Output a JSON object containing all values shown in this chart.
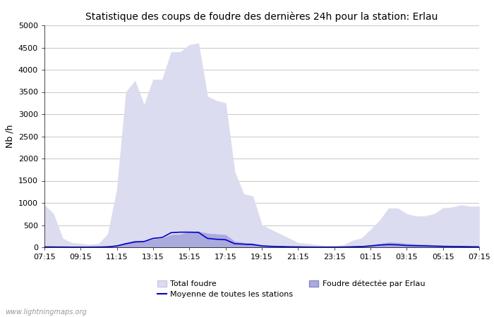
{
  "title": "Statistique des coups de foudre des dernières 24h pour la station: Erlau",
  "ylabel": "Nb /h",
  "xlim_labels": [
    "07:15",
    "09:15",
    "11:15",
    "13:15",
    "15:15",
    "17:15",
    "19:15",
    "21:15",
    "23:15",
    "01:15",
    "03:15",
    "05:15",
    "07:15"
  ],
  "ylim": [
    0,
    5000
  ],
  "yticks": [
    0,
    500,
    1000,
    1500,
    2000,
    2500,
    3000,
    3500,
    4000,
    4500,
    5000
  ],
  "bg_color": "#ffffff",
  "grid_color": "#cccccc",
  "total_foudre_color": "#dcdcf0",
  "total_foudre_edge": "#c8c8e8",
  "erlau_color": "#aaaadd",
  "erlau_edge": "#8888cc",
  "moyenne_color": "#0000cc",
  "watermark": "www.lightningmaps.org",
  "total_foudre_data": [
    950,
    750,
    200,
    100,
    80,
    60,
    80,
    300,
    1300,
    3500,
    3750,
    3200,
    3780,
    3780,
    4400,
    4400,
    4560,
    4600,
    3400,
    3300,
    3250,
    1700,
    1200,
    1150,
    500,
    400,
    300,
    200,
    100,
    80,
    60,
    30,
    30,
    50,
    150,
    200,
    400,
    600,
    880,
    880,
    750,
    700,
    700,
    750,
    880,
    900,
    950,
    920,
    920
  ],
  "erlau_data": [
    30,
    25,
    10,
    5,
    5,
    5,
    8,
    15,
    50,
    100,
    150,
    130,
    180,
    200,
    280,
    290,
    350,
    360,
    310,
    295,
    280,
    130,
    100,
    90,
    50,
    40,
    30,
    20,
    10,
    8,
    5,
    5,
    5,
    10,
    20,
    30,
    50,
    80,
    110,
    100,
    80,
    70,
    60,
    50,
    40,
    35,
    30,
    20,
    15
  ],
  "moyenne_data": [
    5,
    5,
    5,
    3,
    3,
    3,
    5,
    10,
    30,
    80,
    120,
    130,
    200,
    220,
    330,
    340,
    340,
    335,
    200,
    180,
    170,
    80,
    70,
    60,
    30,
    20,
    15,
    10,
    8,
    5,
    3,
    3,
    3,
    5,
    10,
    15,
    30,
    50,
    60,
    55,
    40,
    35,
    30,
    25,
    20,
    18,
    15,
    12,
    10
  ]
}
